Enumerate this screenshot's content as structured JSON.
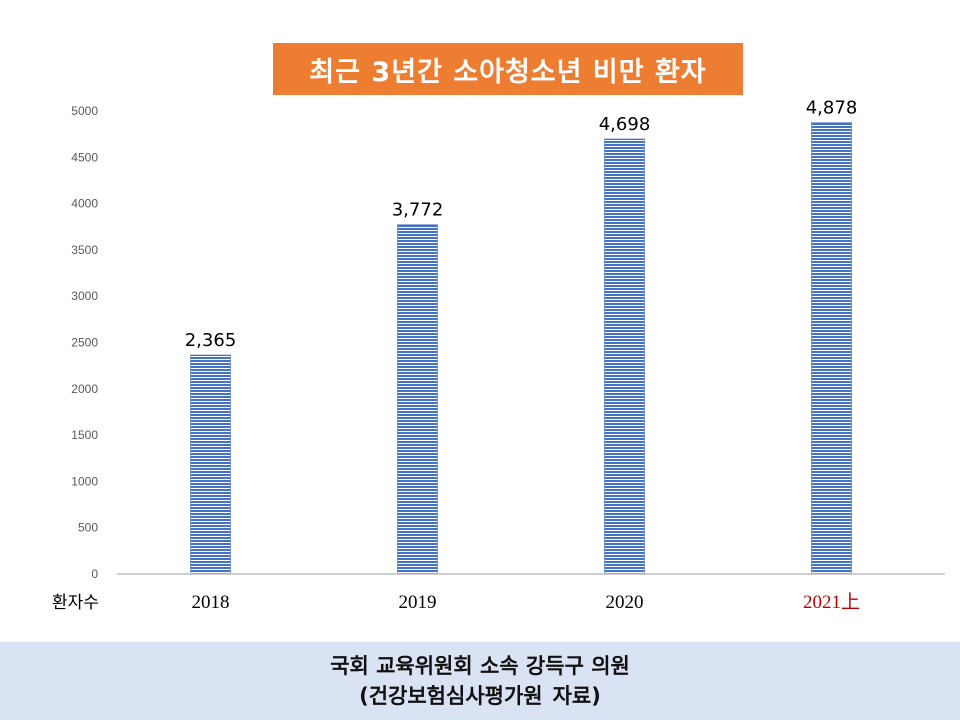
{
  "chart_data": {
    "type": "bar",
    "title": "최근 3년간 소아청소년 비만 환자",
    "categories": [
      "2018",
      "2019",
      "2020",
      "2021上"
    ],
    "values": [
      2365,
      3772,
      4698,
      4878
    ],
    "data_labels": [
      "2,365",
      "3,772",
      "4,698",
      "4,878"
    ],
    "ylabel": "환자수",
    "ylim": [
      0,
      5000
    ],
    "yticks": [
      0,
      500,
      1000,
      1500,
      2000,
      2500,
      3000,
      3500,
      4000,
      4500,
      5000
    ],
    "grid": false,
    "legend": "none",
    "bar_color": "#4472C4",
    "highlight_category_color": "#C00000"
  },
  "footer": {
    "line1": "국회 교육위원회 소속 강득구 의원",
    "line2_prefix": "(건강보험심사평가원",
    "line2_suffix": "자료)"
  }
}
